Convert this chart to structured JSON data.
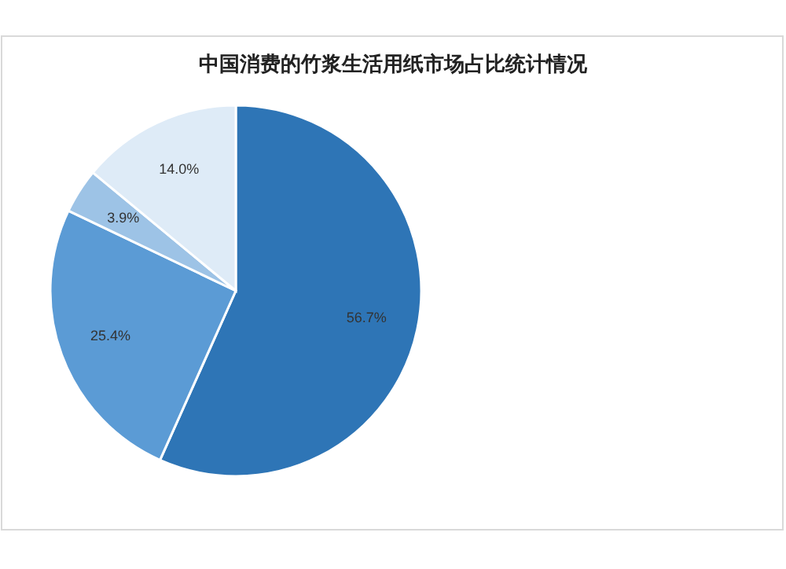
{
  "chart_data": {
    "type": "pie",
    "title": "中国消费的竹浆生活用纸市场占比统计情况",
    "categories": [
      null,
      null,
      null,
      null
    ],
    "values": [
      56.7,
      25.4,
      3.9,
      14.0
    ],
    "colors": [
      "#2e75b6",
      "#5b9bd5",
      "#9dc3e6",
      "#deebf7"
    ],
    "value_labels": [
      "56.7%",
      "25.4%",
      "3.9%",
      "14.0%"
    ]
  }
}
